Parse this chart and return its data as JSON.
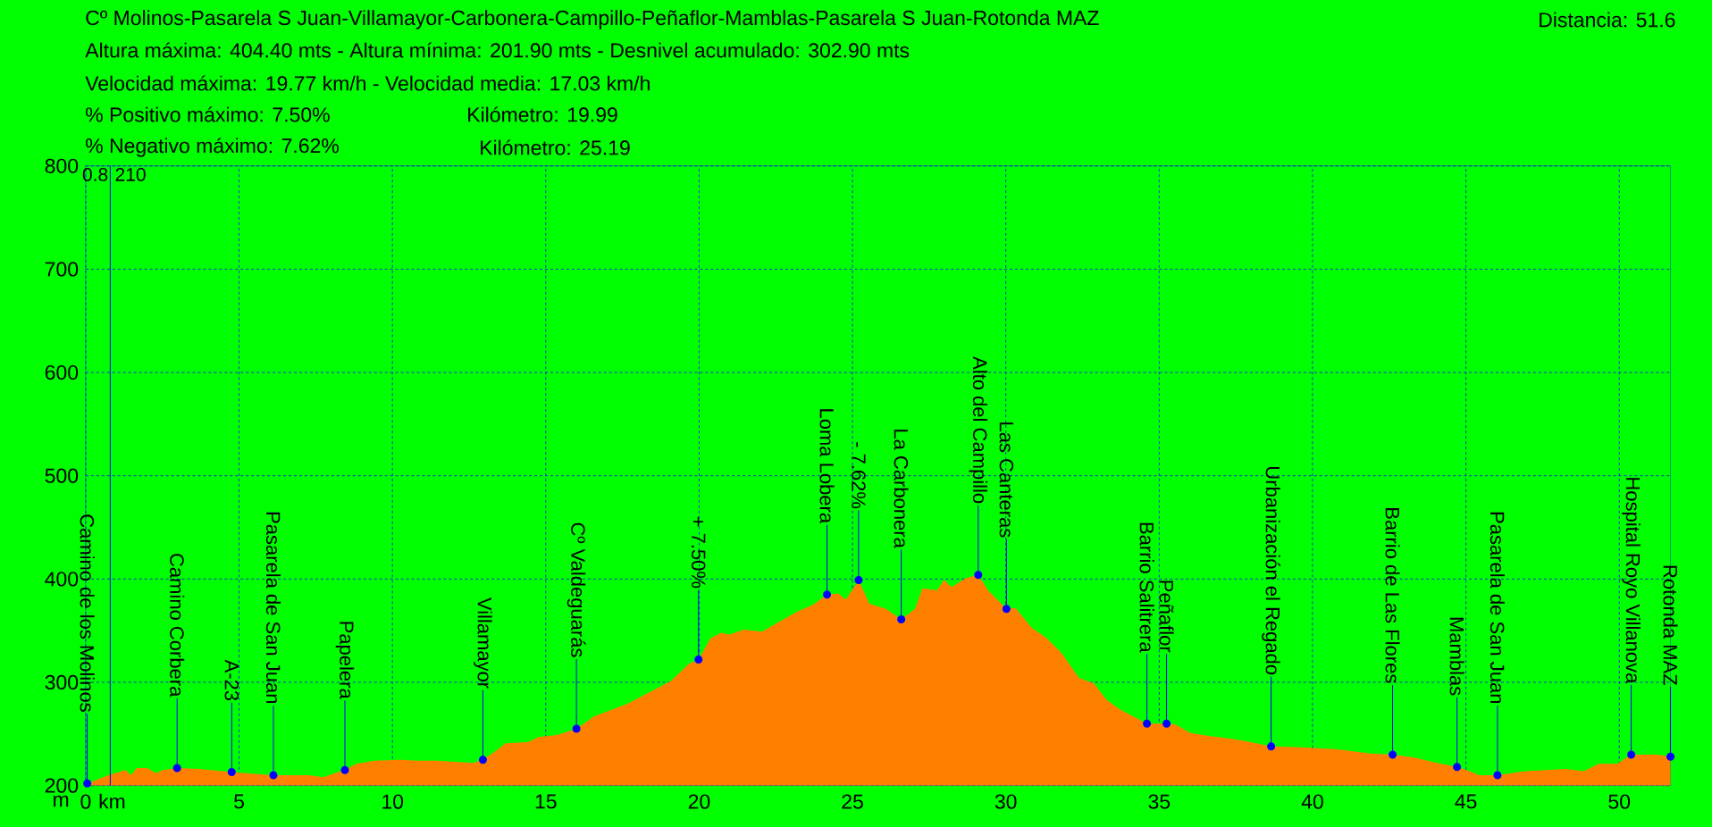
{
  "chart_data": {
    "type": "area",
    "title": "Cº Molinos-Pasarela S Juan-Villamayor-Carbonera-Campillo-Peñaflor-Mamblas-Pasarela S Juan-Rotonda MAZ",
    "xlabel": "km",
    "ylabel": "m",
    "x": [
      0.05,
      0.74,
      1.3,
      1.48,
      1.66,
      2.0,
      2.3,
      2.5,
      2.98,
      3.7,
      4.76,
      5.6,
      6.12,
      7.28,
      7.75,
      8.23,
      8.45,
      8.82,
      9.42,
      10.25,
      10.84,
      11.44,
      12.03,
      12.63,
      12.95,
      13.34,
      13.7,
      14.41,
      14.77,
      15.36,
      16.0,
      16.58,
      17.65,
      19.07,
      19.67,
      19.98,
      20.38,
      20.74,
      20.98,
      21.45,
      22.05,
      22.52,
      23.23,
      23.71,
      24.17,
      24.54,
      24.78,
      25.2,
      25.55,
      26.09,
      26.59,
      27.04,
      27.28,
      27.75,
      27.99,
      28.23,
      28.7,
      29.1,
      29.42,
      29.66,
      30.02,
      30.31,
      30.84,
      31.32,
      31.8,
      32.39,
      32.87,
      33.28,
      33.7,
      34.21,
      34.6,
      35.24,
      35.53,
      36.0,
      36.6,
      37.2,
      37.8,
      38.65,
      39.61,
      40.81,
      41.89,
      42.61,
      43.33,
      44.05,
      44.71,
      45.13,
      45.43,
      46.03,
      46.93,
      48.25,
      48.85,
      49.33,
      49.93,
      50.39,
      51.25,
      51.67
    ],
    "series": [
      {
        "color": "#ff8000",
        "values": [
          202,
          210,
          215,
          210,
          217,
          217,
          212,
          215,
          217,
          216,
          213,
          211,
          210,
          210,
          208,
          213,
          215,
          221,
          224,
          225,
          224,
          224,
          223,
          222,
          225,
          233,
          241,
          242,
          247,
          249,
          255,
          267,
          279,
          301,
          318,
          322,
          343,
          348,
          346,
          351,
          349,
          357,
          369,
          375,
          385,
          386,
          380,
          399,
          376,
          371,
          361,
          371,
          391,
          389,
          399,
          392,
          401,
          404,
          389,
          382,
          371,
          372,
          353,
          343,
          329,
          304,
          299,
          283,
          274,
          266,
          260,
          260,
          259,
          251,
          248,
          246,
          243,
          238,
          237,
          235,
          231,
          230,
          227,
          222,
          218,
          214,
          210,
          210,
          214,
          216,
          214,
          221,
          221,
          230,
          230,
          228
        ]
      }
    ],
    "xlim": [
      0,
      51.67
    ],
    "ylim": [
      200,
      800
    ],
    "xticks": [
      0,
      5,
      10,
      15,
      20,
      25,
      30,
      35,
      40,
      45,
      50
    ],
    "yticks": [
      200,
      300,
      400,
      500,
      600,
      700,
      800
    ],
    "grid": true,
    "ref_lines": [
      {
        "axis": "x",
        "value": 0.8,
        "label": "0.8",
        "color": "#0000ff"
      }
    ],
    "annotations": [
      "Distancia: 51.6",
      "Altura máxima: 404.40 mts - Altura mínima: 201.90 mts - Desnivel acumulado: 302.90 mts",
      "Velocidad máxima: 19.77 km/h - Velocidad media: 17.03 km/h",
      "% Positivo máximo: 7.50%",
      "Kilómetro: 19.99",
      "% Negativo máximo: 7.62%",
      "Kilómetro: 25.19",
      "210",
      {
        "text": "Camino de los Molinos",
        "x": 0.05,
        "y": 202
      },
      {
        "text": "Camino Corbera",
        "x": 2.98,
        "y": 217
      },
      {
        "text": "A-23",
        "x": 4.76,
        "y": 213
      },
      {
        "text": "Pasarela de San Juan",
        "x": 6.12,
        "y": 210
      },
      {
        "text": "Papelera",
        "x": 8.45,
        "y": 215
      },
      {
        "text": "Villamayor",
        "x": 12.95,
        "y": 225
      },
      {
        "text": "Cº Valdeguarás",
        "x": 16.0,
        "y": 255
      },
      {
        "text": "+ 7.50%",
        "x": 19.98,
        "y": 322
      },
      {
        "text": "Loma Lobera",
        "x": 24.17,
        "y": 385
      },
      {
        "text": "- 7.62%",
        "x": 25.2,
        "y": 399
      },
      {
        "text": "La Carbonera",
        "x": 26.59,
        "y": 361
      },
      {
        "text": "Alto del Campillo",
        "x": 29.1,
        "y": 404
      },
      {
        "text": "Las Canteras",
        "x": 30.02,
        "y": 371
      },
      {
        "text": "Barrio Salitrera",
        "x": 34.6,
        "y": 260
      },
      {
        "text": "Peñaflor",
        "x": 35.24,
        "y": 260
      },
      {
        "text": "Urbanización el Regado",
        "x": 38.65,
        "y": 238
      },
      {
        "text": "Barrio de Las Flores",
        "x": 42.61,
        "y": 230
      },
      {
        "text": "Mamblas",
        "x": 44.71,
        "y": 218
      },
      {
        "text": "Pasarela de San Juan",
        "x": 46.03,
        "y": 210
      },
      {
        "text": "Hospital Royo Villanova",
        "x": 50.39,
        "y": 230
      },
      {
        "text": "Rotonda MAZ",
        "x": 51.67,
        "y": 228
      }
    ]
  }
}
